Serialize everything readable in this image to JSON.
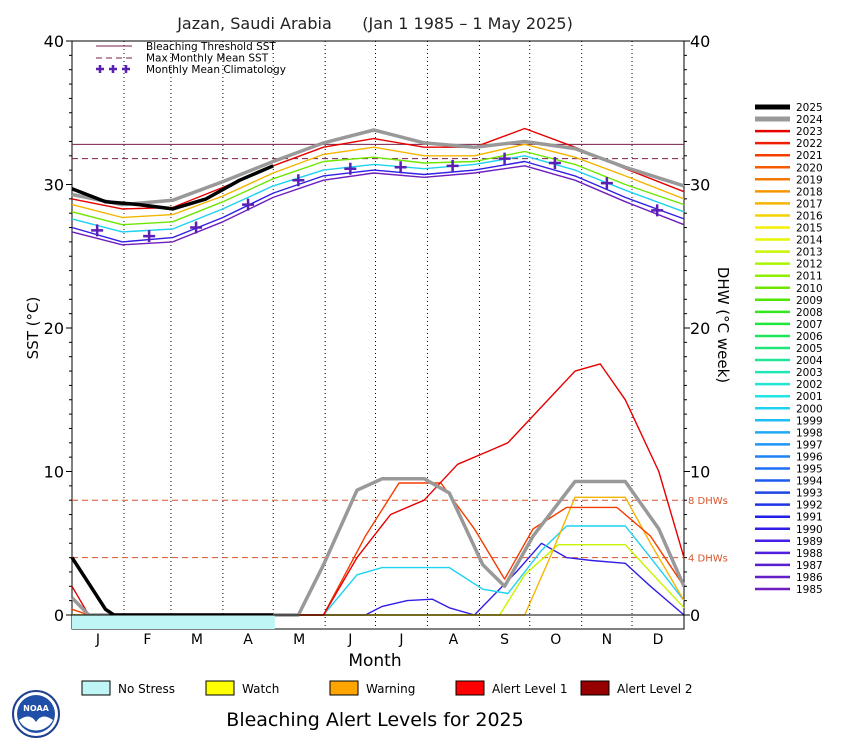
{
  "chart_data": {
    "type": "line",
    "title": "Jazan, Saudi Arabia      (Jan 1 1985 – 1 May 2025)",
    "xlabel": "Month",
    "ylabel_left": "SST (°C)",
    "ylabel_right": "DHW (°C week)",
    "x_unit": "day of year",
    "ylim": [
      0,
      40
    ],
    "y_ticks": [
      0,
      10,
      20,
      30,
      40
    ],
    "months": [
      "J",
      "F",
      "M",
      "A",
      "M",
      "J",
      "J",
      "A",
      "S",
      "O",
      "N",
      "D"
    ],
    "legend_top": [
      {
        "label": "Bleaching Threshold SST",
        "style": "solid",
        "color": "#7a1f4a"
      },
      {
        "label": "Max Monthly Mean SST",
        "style": "dashed",
        "color": "#7a1f4a"
      },
      {
        "label": "Monthly Mean Climatology",
        "style": "plus",
        "color": "#5a1fb4"
      }
    ],
    "bleaching_threshold_sst": 32.8,
    "max_monthly_mean_sst": 31.8,
    "dhw_reference_lines": [
      {
        "value": 8,
        "label": "8 DHWs"
      },
      {
        "value": 4,
        "label": "4 DHWs"
      }
    ],
    "monthly_mean_climatology": [
      {
        "x": 15,
        "y": 26.8
      },
      {
        "x": 46,
        "y": 26.4
      },
      {
        "x": 74,
        "y": 27.0
      },
      {
        "x": 105,
        "y": 28.6
      },
      {
        "x": 135,
        "y": 30.3
      },
      {
        "x": 166,
        "y": 31.1
      },
      {
        "x": 196,
        "y": 31.2
      },
      {
        "x": 227,
        "y": 31.3
      },
      {
        "x": 258,
        "y": 31.8
      },
      {
        "x": 288,
        "y": 31.5
      },
      {
        "x": 319,
        "y": 30.1
      },
      {
        "x": 349,
        "y": 28.2
      }
    ],
    "years": [
      2025,
      2024,
      2023,
      2022,
      2021,
      2020,
      2019,
      2018,
      2017,
      2016,
      2015,
      2014,
      2013,
      2012,
      2011,
      2010,
      2009,
      2008,
      2007,
      2006,
      2005,
      2004,
      2003,
      2002,
      2001,
      2000,
      1999,
      1998,
      1997,
      1996,
      1995,
      1994,
      1993,
      1992,
      1991,
      1990,
      1989,
      1988,
      1987,
      1986,
      1985
    ],
    "colors": {
      "2025": "#000000",
      "2024": "#999999",
      "2023": "#e60000",
      "2022": "#f01e00",
      "2021": "#f53c00",
      "2020": "#f55a00",
      "2019": "#f57800",
      "2018": "#f59600",
      "2017": "#f5b400",
      "2016": "#f5d200",
      "2015": "#f5f000",
      "2014": "#e6f500",
      "2013": "#c8f500",
      "2012": "#aaf500",
      "2011": "#8cf000",
      "2010": "#6ee600",
      "2009": "#50e600",
      "2008": "#32e61e",
      "2007": "#1ee63c",
      "2006": "#1ee65a",
      "2005": "#1ee678",
      "2004": "#1ee696",
      "2003": "#1ee6b4",
      "2002": "#1ee6d2",
      "2001": "#1ee6e6",
      "2000": "#1ed2f0",
      "1999": "#1ebef5",
      "1998": "#1eaaf5",
      "1997": "#1e96f5",
      "1996": "#1e82f5",
      "1995": "#1e6ef5",
      "1994": "#1e5af0",
      "1993": "#1e46e6",
      "1992": "#1e32e6",
      "1991": "#1e1ee6",
      "1990": "#321ee6",
      "1989": "#461ee6",
      "1988": "#501edc",
      "1987": "#5a1ed2",
      "1986": "#641ec8",
      "1985": "#6e1ebe"
    },
    "sst_series": [
      {
        "name": "2025",
        "color": "#000000",
        "points": [
          [
            0,
            29.7
          ],
          [
            20,
            28.8
          ],
          [
            40,
            28.6
          ],
          [
            60,
            28.3
          ],
          [
            80,
            29.0
          ],
          [
            100,
            30.3
          ],
          [
            120,
            31.3
          ]
        ]
      },
      {
        "name": "2024",
        "color": "#999999",
        "points": [
          [
            0,
            29.3
          ],
          [
            30,
            28.6
          ],
          [
            60,
            28.9
          ],
          [
            90,
            30.2
          ],
          [
            120,
            31.6
          ],
          [
            150,
            32.9
          ],
          [
            180,
            33.8
          ],
          [
            210,
            32.9
          ],
          [
            240,
            32.6
          ],
          [
            270,
            33.0
          ],
          [
            300,
            32.5
          ],
          [
            330,
            31.2
          ],
          [
            365,
            29.9
          ]
        ]
      },
      {
        "name": "2023",
        "color": "#e60000",
        "points": [
          [
            0,
            29.0
          ],
          [
            30,
            28.3
          ],
          [
            60,
            28.4
          ],
          [
            90,
            29.8
          ],
          [
            120,
            31.3
          ],
          [
            150,
            32.6
          ],
          [
            180,
            33.2
          ],
          [
            210,
            32.6
          ],
          [
            240,
            32.6
          ],
          [
            270,
            33.9
          ],
          [
            300,
            32.6
          ],
          [
            330,
            31.1
          ],
          [
            365,
            29.5
          ]
        ]
      },
      {
        "name": "2017",
        "color": "#f5b400",
        "points": [
          [
            0,
            28.6
          ],
          [
            30,
            27.7
          ],
          [
            60,
            27.9
          ],
          [
            90,
            29.2
          ],
          [
            120,
            30.8
          ],
          [
            150,
            32.1
          ],
          [
            180,
            32.6
          ],
          [
            210,
            32.0
          ],
          [
            240,
            32.0
          ],
          [
            270,
            32.8
          ],
          [
            300,
            31.9
          ],
          [
            330,
            30.6
          ],
          [
            365,
            29.0
          ]
        ]
      },
      {
        "name": "2010",
        "color": "#6ee600",
        "points": [
          [
            0,
            28.1
          ],
          [
            30,
            27.2
          ],
          [
            60,
            27.4
          ],
          [
            90,
            28.8
          ],
          [
            120,
            30.4
          ],
          [
            150,
            31.6
          ],
          [
            180,
            31.9
          ],
          [
            210,
            31.5
          ],
          [
            240,
            31.6
          ],
          [
            270,
            32.3
          ],
          [
            300,
            31.4
          ],
          [
            330,
            30.0
          ],
          [
            365,
            28.6
          ]
        ]
      },
      {
        "name": "2000",
        "color": "#1ed2f0",
        "points": [
          [
            0,
            27.6
          ],
          [
            30,
            26.7
          ],
          [
            60,
            26.9
          ],
          [
            90,
            28.3
          ],
          [
            120,
            29.9
          ],
          [
            150,
            31.0
          ],
          [
            180,
            31.4
          ],
          [
            210,
            31.1
          ],
          [
            240,
            31.4
          ],
          [
            270,
            32.0
          ],
          [
            300,
            31.0
          ],
          [
            330,
            29.6
          ],
          [
            365,
            28.1
          ]
        ]
      },
      {
        "name": "1990",
        "color": "#321ee6",
        "points": [
          [
            0,
            27.0
          ],
          [
            30,
            26.0
          ],
          [
            60,
            26.3
          ],
          [
            90,
            27.7
          ],
          [
            120,
            29.4
          ],
          [
            150,
            30.6
          ],
          [
            180,
            31.0
          ],
          [
            210,
            30.7
          ],
          [
            240,
            31.0
          ],
          [
            270,
            31.6
          ],
          [
            300,
            30.6
          ],
          [
            330,
            29.1
          ],
          [
            365,
            27.6
          ]
        ]
      },
      {
        "name": "1985",
        "color": "#6e1ebe",
        "points": [
          [
            0,
            26.7
          ],
          [
            30,
            25.8
          ],
          [
            60,
            26.0
          ],
          [
            90,
            27.4
          ],
          [
            120,
            29.1
          ],
          [
            150,
            30.3
          ],
          [
            180,
            30.8
          ],
          [
            210,
            30.5
          ],
          [
            240,
            30.8
          ],
          [
            270,
            31.3
          ],
          [
            300,
            30.3
          ],
          [
            330,
            28.8
          ],
          [
            365,
            27.2
          ]
        ]
      }
    ],
    "dhw_series": [
      {
        "name": "2025",
        "color": "#000000",
        "points": [
          [
            0,
            4.0
          ],
          [
            10,
            2.2
          ],
          [
            20,
            0.4
          ],
          [
            25,
            0
          ],
          [
            120,
            0
          ]
        ]
      },
      {
        "name": "2024",
        "color": "#999999",
        "points": [
          [
            0,
            1.2
          ],
          [
            10,
            0
          ],
          [
            135,
            0
          ],
          [
            150,
            3.5
          ],
          [
            170,
            8.7
          ],
          [
            185,
            9.5
          ],
          [
            210,
            9.5
          ],
          [
            225,
            8.5
          ],
          [
            245,
            3.5
          ],
          [
            258,
            2.0
          ],
          [
            275,
            5.5
          ],
          [
            300,
            9.3
          ],
          [
            330,
            9.3
          ],
          [
            350,
            6.0
          ],
          [
            365,
            2.0
          ]
        ]
      },
      {
        "name": "2023",
        "color": "#e60000",
        "points": [
          [
            0,
            2.0
          ],
          [
            10,
            0
          ],
          [
            150,
            0
          ],
          [
            170,
            4.0
          ],
          [
            190,
            7.0
          ],
          [
            210,
            8.0
          ],
          [
            230,
            10.5
          ],
          [
            250,
            11.5
          ],
          [
            260,
            12.0
          ],
          [
            280,
            14.5
          ],
          [
            300,
            17.0
          ],
          [
            315,
            17.5
          ],
          [
            330,
            15.0
          ],
          [
            350,
            10.0
          ],
          [
            365,
            4.0
          ]
        ]
      },
      {
        "name": "2021",
        "color": "#f53c00",
        "points": [
          [
            0,
            0.4
          ],
          [
            10,
            0
          ],
          [
            150,
            0
          ],
          [
            175,
            5.5
          ],
          [
            195,
            9.2
          ],
          [
            220,
            9.2
          ],
          [
            240,
            6.0
          ],
          [
            258,
            2.5
          ],
          [
            275,
            6.0
          ],
          [
            295,
            7.5
          ],
          [
            325,
            7.5
          ],
          [
            345,
            5.5
          ],
          [
            365,
            2.0
          ]
        ]
      },
      {
        "name": "2017",
        "color": "#f5b400",
        "points": [
          [
            0,
            0
          ],
          [
            270,
            0
          ],
          [
            285,
            4.0
          ],
          [
            300,
            8.2
          ],
          [
            330,
            8.2
          ],
          [
            345,
            5.0
          ],
          [
            365,
            1.0
          ]
        ]
      },
      {
        "name": "2013",
        "color": "#c8f500",
        "points": [
          [
            0,
            0
          ],
          [
            255,
            0
          ],
          [
            270,
            2.8
          ],
          [
            290,
            4.9
          ],
          [
            330,
            4.9
          ],
          [
            345,
            3.0
          ],
          [
            365,
            0.5
          ]
        ]
      },
      {
        "name": "2000",
        "color": "#1ed2f0",
        "points": [
          [
            0,
            0
          ],
          [
            150,
            0
          ],
          [
            170,
            2.8
          ],
          [
            185,
            3.3
          ],
          [
            225,
            3.3
          ],
          [
            245,
            1.8
          ],
          [
            260,
            1.5
          ],
          [
            280,
            4.5
          ],
          [
            295,
            6.2
          ],
          [
            330,
            6.2
          ],
          [
            345,
            4.0
          ],
          [
            365,
            1.0
          ]
        ]
      },
      {
        "name": "1990",
        "color": "#321ee6",
        "points": [
          [
            0,
            0
          ],
          [
            175,
            0
          ],
          [
            185,
            0.6
          ],
          [
            200,
            1.0
          ],
          [
            215,
            1.1
          ],
          [
            225,
            0.5
          ],
          [
            240,
            0
          ],
          [
            265,
            3.0
          ],
          [
            280,
            5.0
          ],
          [
            295,
            4.0
          ],
          [
            310,
            3.8
          ],
          [
            330,
            3.6
          ],
          [
            345,
            2.0
          ],
          [
            365,
            0
          ]
        ]
      }
    ],
    "legend_bottom": {
      "title": "Bleaching Alert Levels for 2025",
      "items": [
        {
          "label": "No Stress",
          "color": "#bff5f5"
        },
        {
          "label": "Watch",
          "color": "#ffff00"
        },
        {
          "label": "Warning",
          "color": "#ffa500"
        },
        {
          "label": "Alert Level 1",
          "color": "#ff0000"
        },
        {
          "label": "Alert Level 2",
          "color": "#960000"
        }
      ]
    },
    "alert_strip_2025": [
      {
        "from": 0,
        "to": 121,
        "level": "No Stress"
      }
    ]
  }
}
